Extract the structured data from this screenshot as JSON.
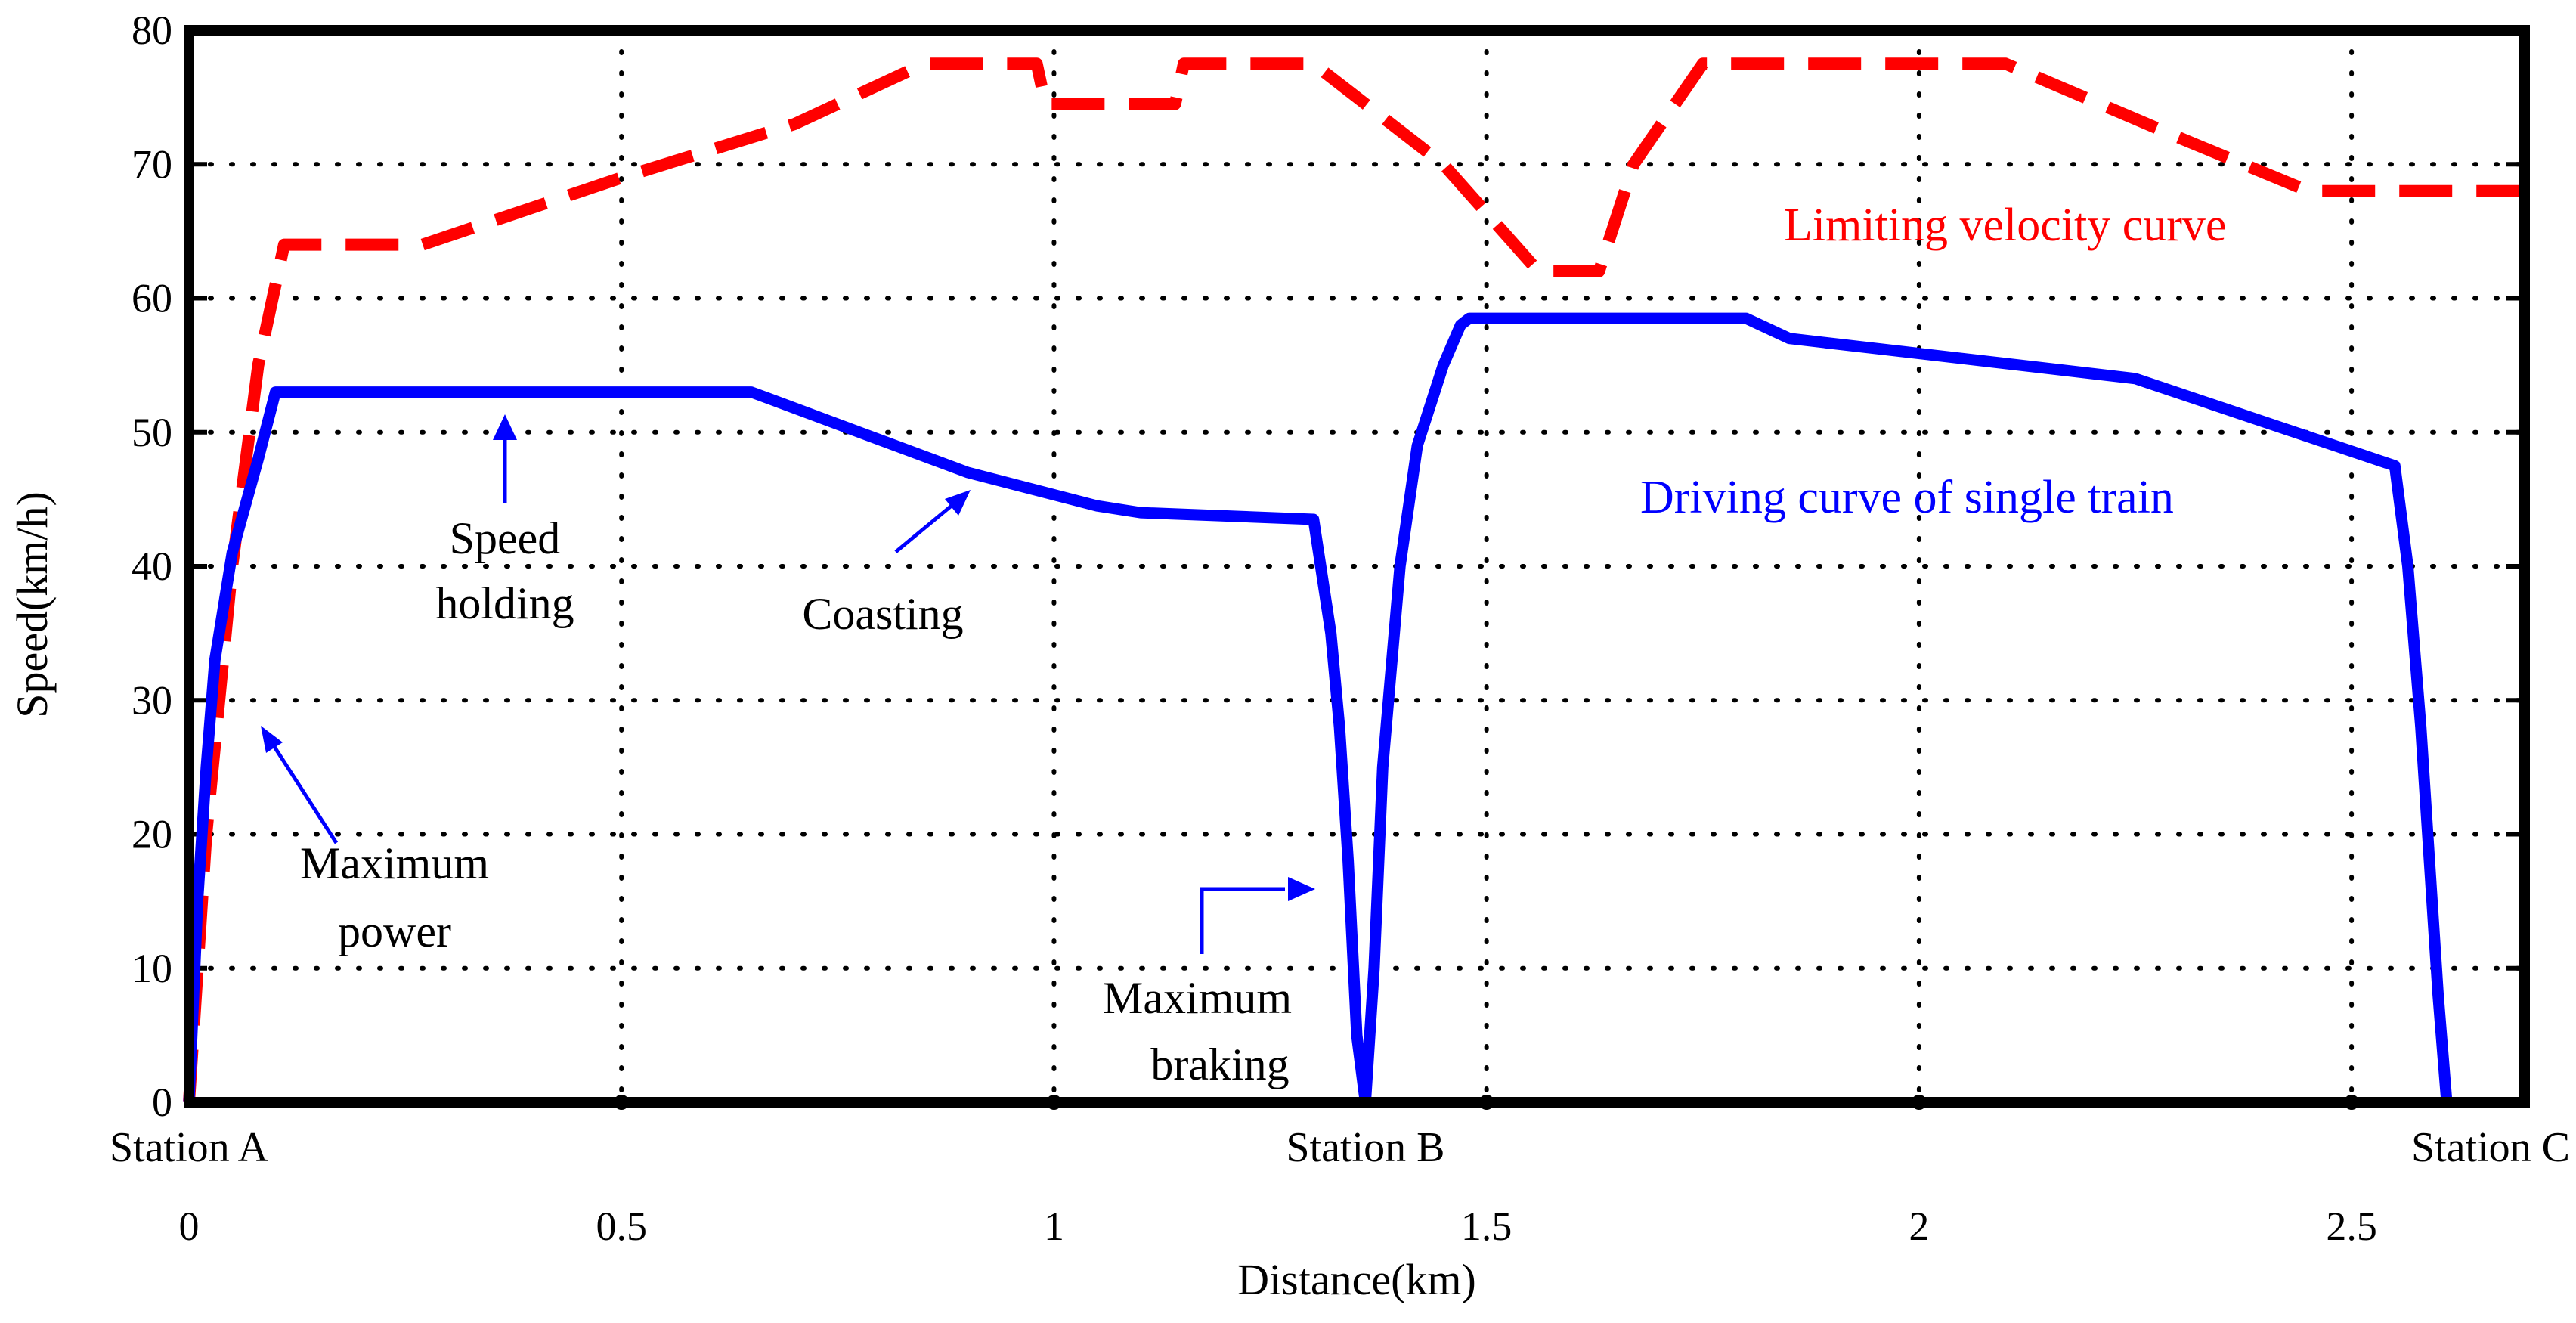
{
  "chart_data": {
    "type": "line",
    "xlabel": "Distance(km)",
    "ylabel": "Speed(km/h)",
    "xlim": [
      0,
      2.7
    ],
    "ylim": [
      0,
      80
    ],
    "xticks": [
      0,
      0.5,
      1,
      1.5,
      2,
      2.5
    ],
    "xtick_labels": [
      "0",
      "0.5",
      "1",
      "1.5",
      "2",
      "2.5"
    ],
    "yticks": [
      0,
      10,
      20,
      30,
      40,
      50,
      60,
      70,
      80
    ],
    "ytick_labels": [
      "0",
      "10",
      "20",
      "30",
      "40",
      "50",
      "60",
      "70",
      "80"
    ],
    "grid": true,
    "stations": [
      {
        "name": "Station A",
        "x": 0
      },
      {
        "name": "Station B",
        "x": 1.36
      },
      {
        "name": "Station C",
        "x": 2.61
      }
    ],
    "series": [
      {
        "name": "Limiting velocity curve",
        "color": "#ff0000",
        "style": "dashed",
        "x": [
          0,
          0.02,
          0.05,
          0.08,
          0.11,
          0.27,
          0.5,
          0.7,
          0.85,
          0.98,
          0.99,
          1.14,
          1.15,
          1.3,
          1.45,
          1.56,
          1.63,
          1.67,
          1.75,
          2.1,
          2.3,
          2.45,
          2.7
        ],
        "y": [
          0,
          20,
          40,
          55,
          64,
          64,
          69,
          73,
          77.5,
          77.5,
          74.5,
          74.5,
          77.5,
          77.5,
          70,
          62,
          62,
          70,
          77.5,
          77.5,
          72,
          68,
          68
        ]
      },
      {
        "name": "Driving curve of single train",
        "color": "#0000ff",
        "style": "solid",
        "x": [
          0,
          0.01,
          0.02,
          0.03,
          0.05,
          0.08,
          0.1,
          0.65,
          0.9,
          1.05,
          1.1,
          1.3,
          1.32,
          1.33,
          1.34,
          1.35,
          1.36,
          1.37,
          1.38,
          1.4,
          1.42,
          1.45,
          1.47,
          1.48,
          1.8,
          1.85,
          2.25,
          2.55,
          2.565,
          2.58,
          2.59,
          2.6,
          2.61
        ],
        "y": [
          0,
          15,
          25,
          33,
          41,
          48,
          53,
          53,
          47,
          44.5,
          44,
          43.5,
          35,
          28,
          18,
          5,
          0,
          10,
          25,
          40,
          49,
          55,
          58,
          58.5,
          58.5,
          57,
          54,
          47.5,
          40,
          28,
          18,
          8,
          0
        ]
      }
    ],
    "annotations": [
      {
        "lines": [
          "Speed",
          "holding"
        ]
      },
      {
        "lines": [
          "Coasting"
        ]
      },
      {
        "lines": [
          "Maximum",
          "power"
        ]
      },
      {
        "lines": [
          "Maximum",
          "braking"
        ]
      }
    ],
    "legend": {
      "limit_label": "Limiting velocity curve",
      "train_label": "Driving curve of single train"
    }
  }
}
